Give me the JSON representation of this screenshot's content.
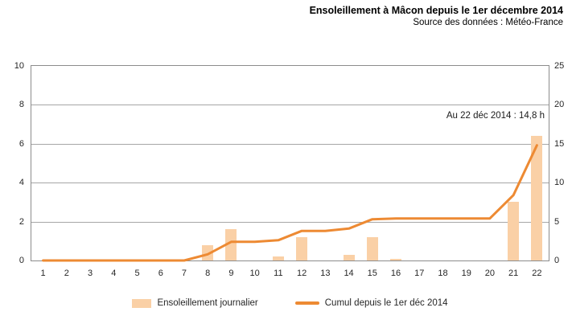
{
  "header": {
    "title": "Ensoleillement à Mâcon depuis le 1er décembre 2014",
    "subtitle": "Source des données : Météo-France"
  },
  "colors": {
    "bar_fill": "#FAD0A6",
    "line_stroke": "#ED8A33",
    "gridline": "#A6A6A6",
    "plot_border": "#8C8C8C",
    "axis_text": "#262626"
  },
  "chart_data": {
    "type": "bar",
    "subtype": "combo-bar-line-dual-axis",
    "title": "Ensoleillement à Mâcon depuis le 1er décembre 2014",
    "subtitle": "Source des données : Météo-France",
    "categories": [
      "1",
      "2",
      "3",
      "4",
      "5",
      "6",
      "7",
      "8",
      "9",
      "10",
      "11",
      "12",
      "13",
      "14",
      "15",
      "16",
      "17",
      "18",
      "19",
      "20",
      "21",
      "22"
    ],
    "xlabel": "",
    "series": [
      {
        "name": "Ensoleillement journalier",
        "type": "bar",
        "axis": "left",
        "values": [
          0,
          0,
          0,
          0,
          0,
          0,
          0,
          0.8,
          1.6,
          0,
          0.2,
          1.2,
          0,
          0.3,
          1.2,
          0.1,
          0,
          0,
          0,
          0,
          3.0,
          6.4
        ]
      },
      {
        "name": "Cumul depuis le 1er déc 2014",
        "type": "line",
        "axis": "right",
        "values": [
          0,
          0,
          0,
          0,
          0,
          0,
          0,
          0.8,
          2.4,
          2.4,
          2.6,
          3.8,
          3.8,
          4.1,
          5.3,
          5.4,
          5.4,
          5.4,
          5.4,
          5.4,
          8.4,
          14.8
        ]
      }
    ],
    "left_axis": {
      "min": 0,
      "max": 10,
      "ticks": [
        0,
        2,
        4,
        6,
        8,
        10
      ]
    },
    "right_axis": {
      "min": 0,
      "max": 25,
      "ticks": [
        0,
        5,
        10,
        15,
        20,
        25
      ]
    },
    "grid": "horizontal",
    "legend_position": "bottom",
    "annotation": "Au 22 déc 2014 : 14,8 h"
  },
  "legend": {
    "items": [
      {
        "label": "Ensoleillement journalier",
        "swatch": "bar"
      },
      {
        "label": "Cumul depuis le 1er déc 2014",
        "swatch": "line"
      }
    ]
  }
}
